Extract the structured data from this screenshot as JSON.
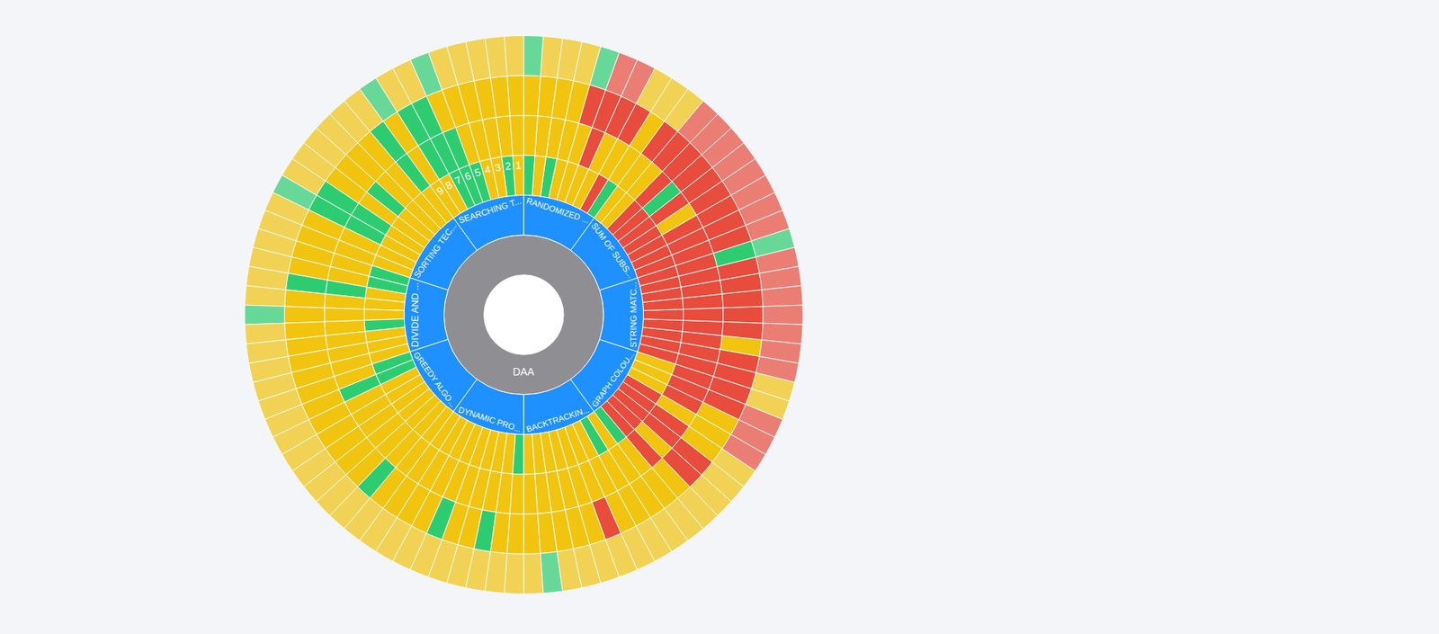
{
  "chart_data": {
    "type": "sunburst",
    "root": "DAA",
    "color": "#8e8e93",
    "children": [
      {
        "label": "SEARCHING T...",
        "color": "#1e90ff",
        "children": [
          {
            "label": "1",
            "colors": [
              "#f1c40f",
              "#f1c40f",
              "#f1c40f",
              "#f1c40f"
            ]
          },
          {
            "label": "2",
            "colors": [
              "#2ecc71",
              "#f1c40f",
              "#f1c40f",
              "#f1c40f"
            ]
          },
          {
            "label": "3",
            "colors": [
              "#f1c40f",
              "#f1c40f",
              "#f1c40f",
              "#f1c40f"
            ]
          },
          {
            "label": "4",
            "colors": [
              "#f1c40f",
              "#f1c40f",
              "#f1c40f",
              "#f1c40f"
            ]
          },
          {
            "label": "5",
            "colors": [
              "#2ecc71",
              "#f1c40f",
              "#f1c40f",
              "#f1c40f"
            ]
          },
          {
            "label": "6",
            "colors": [
              "#2ecc71",
              "#2ecc71",
              "#f1c40f",
              "#2ecc71"
            ]
          },
          {
            "label": "7",
            "colors": [
              "#2ecc71",
              "#2ecc71",
              "#2ecc71",
              "#f1c40f"
            ]
          },
          {
            "label": "8",
            "colors": [
              "#f1c40f",
              "#2ecc71",
              "#2ecc71",
              "#f1c40f"
            ]
          },
          {
            "label": "9",
            "colors": [
              "#f1c40f",
              "#f1c40f",
              "#f1c40f",
              "#2ecc71"
            ]
          }
        ]
      },
      {
        "label": "SORTING TEC...",
        "color": "#1e90ff",
        "children": [
          {
            "label": null,
            "colors": [
              "#f1c40f",
              "#2ecc71",
              "#2ecc71",
              "#f1c40f"
            ]
          },
          {
            "label": null,
            "colors": [
              "#f1c40f",
              "#f1c40f",
              "#f1c40f",
              "#f1c40f"
            ]
          },
          {
            "label": null,
            "colors": [
              "#f1c40f",
              "#f1c40f",
              "#f1c40f",
              "#f1c40f"
            ]
          },
          {
            "label": null,
            "colors": [
              "#f1c40f",
              "#2ecc71",
              "#f1c40f",
              "#f1c40f"
            ]
          },
          {
            "label": null,
            "colors": [
              "#f1c40f",
              "#f1c40f",
              "#f1c40f",
              "#f1c40f"
            ]
          },
          {
            "label": null,
            "colors": [
              "#f1c40f",
              "#2ecc71",
              "#2ecc71",
              "#f1c40f"
            ]
          },
          {
            "label": null,
            "colors": [
              "#f1c40f",
              "#2ecc71",
              "#2ecc71",
              "#2ecc71"
            ]
          },
          {
            "label": null,
            "colors": [
              "#f1c40f",
              "#f1c40f",
              "#f1c40f",
              "#f1c40f"
            ]
          },
          {
            "label": null,
            "colors": [
              "#f1c40f",
              "#f1c40f",
              "#f1c40f",
              "#f1c40f"
            ]
          }
        ]
      },
      {
        "label": "DIVIDE AND ...",
        "color": "#1e90ff",
        "children": [
          {
            "label": null,
            "colors": [
              "#2ecc71",
              "#f1c40f",
              "#f1c40f",
              "#f1c40f"
            ]
          },
          {
            "label": null,
            "colors": [
              "#2ecc71",
              "#f1c40f",
              "#f1c40f",
              "#f1c40f"
            ]
          },
          {
            "label": null,
            "colors": [
              "#f1c40f",
              "#2ecc71",
              "#2ecc71",
              "#f1c40f"
            ]
          },
          {
            "label": null,
            "colors": [
              "#f1c40f",
              "#f1c40f",
              "#f1c40f",
              "#f1c40f"
            ]
          },
          {
            "label": null,
            "colors": [
              "#f1c40f",
              "#f1c40f",
              "#f1c40f",
              "#2ecc71"
            ]
          },
          {
            "label": null,
            "colors": [
              "#2ecc71",
              "#f1c40f",
              "#f1c40f",
              "#f1c40f"
            ]
          },
          {
            "label": null,
            "colors": [
              "#f1c40f",
              "#f1c40f",
              "#f1c40f",
              "#f1c40f"
            ]
          },
          {
            "label": null,
            "colors": [
              "#f1c40f",
              "#f1c40f",
              "#f1c40f",
              "#f1c40f"
            ]
          },
          {
            "label": null,
            "colors": [
              "#f1c40f",
              "#f1c40f",
              "#f1c40f",
              "#f1c40f"
            ]
          }
        ]
      },
      {
        "label": "GREEDY ALGO...",
        "color": "#1e90ff",
        "children": [
          {
            "label": null,
            "colors": [
              "#2ecc71",
              "#f1c40f",
              "#f1c40f",
              "#f1c40f"
            ]
          },
          {
            "label": null,
            "colors": [
              "#2ecc71",
              "#2ecc71",
              "#f1c40f",
              "#f1c40f"
            ]
          },
          {
            "label": null,
            "colors": [
              "#f1c40f",
              "#f1c40f",
              "#f1c40f",
              "#f1c40f"
            ]
          },
          {
            "label": null,
            "colors": [
              "#f1c40f",
              "#f1c40f",
              "#f1c40f",
              "#f1c40f"
            ]
          },
          {
            "label": null,
            "colors": [
              "#f1c40f",
              "#f1c40f",
              "#f1c40f",
              "#f1c40f"
            ]
          },
          {
            "label": null,
            "colors": [
              "#f1c40f",
              "#f1c40f",
              "#f1c40f",
              "#f1c40f"
            ]
          },
          {
            "label": null,
            "colors": [
              "#f1c40f",
              "#f1c40f",
              "#f1c40f",
              "#f1c40f"
            ]
          },
          {
            "label": null,
            "colors": [
              "#f1c40f",
              "#f1c40f",
              "#2ecc71",
              "#f1c40f"
            ]
          },
          {
            "label": null,
            "colors": [
              "#f1c40f",
              "#f1c40f",
              "#f1c40f",
              "#f1c40f"
            ]
          }
        ]
      },
      {
        "label": "DYNAMIC PRO...",
        "color": "#1e90ff",
        "children": [
          {
            "label": null,
            "colors": [
              "#f1c40f",
              "#f1c40f",
              "#f1c40f",
              "#f1c40f"
            ]
          },
          {
            "label": null,
            "colors": [
              "#f1c40f",
              "#f1c40f",
              "#f1c40f",
              "#f1c40f"
            ]
          },
          {
            "label": null,
            "colors": [
              "#f1c40f",
              "#f1c40f",
              "#f1c40f",
              "#f1c40f"
            ]
          },
          {
            "label": null,
            "colors": [
              "#f1c40f",
              "#f1c40f",
              "#2ecc71",
              "#f1c40f"
            ]
          },
          {
            "label": null,
            "colors": [
              "#f1c40f",
              "#f1c40f",
              "#f1c40f",
              "#f1c40f"
            ]
          },
          {
            "label": null,
            "colors": [
              "#f1c40f",
              "#f1c40f",
              "#f1c40f",
              "#f1c40f"
            ]
          },
          {
            "label": null,
            "colors": [
              "#f1c40f",
              "#f1c40f",
              "#2ecc71",
              "#f1c40f"
            ]
          },
          {
            "label": null,
            "colors": [
              "#f1c40f",
              "#f1c40f",
              "#f1c40f",
              "#f1c40f"
            ]
          },
          {
            "label": null,
            "colors": [
              "#2ecc71",
              "#f1c40f",
              "#f1c40f",
              "#f1c40f"
            ]
          }
        ]
      },
      {
        "label": "BACKTRACKIN...",
        "color": "#1e90ff",
        "children": [
          {
            "label": null,
            "colors": [
              "#f1c40f",
              "#f1c40f",
              "#f1c40f",
              "#f1c40f"
            ]
          },
          {
            "label": null,
            "colors": [
              "#f1c40f",
              "#f1c40f",
              "#f1c40f",
              "#2ecc71"
            ]
          },
          {
            "label": null,
            "colors": [
              "#f1c40f",
              "#f1c40f",
              "#f1c40f",
              "#f1c40f"
            ]
          },
          {
            "label": null,
            "colors": [
              "#f1c40f",
              "#f1c40f",
              "#f1c40f",
              "#f1c40f"
            ]
          },
          {
            "label": null,
            "colors": [
              "#f1c40f",
              "#f1c40f",
              "#f1c40f",
              "#f1c40f"
            ]
          },
          {
            "label": null,
            "colors": [
              "#f1c40f",
              "#f1c40f",
              "#e74c3c",
              "#f1c40f"
            ]
          },
          {
            "label": null,
            "colors": [
              "#f1c40f",
              "#f1c40f",
              "#f1c40f",
              "#f1c40f"
            ]
          },
          {
            "label": null,
            "colors": [
              "#2ecc71",
              "#f1c40f",
              "#f1c40f",
              "#f1c40f"
            ]
          },
          {
            "label": null,
            "colors": [
              "#f1c40f",
              "#f1c40f",
              "#f1c40f",
              "#f1c40f"
            ]
          }
        ]
      },
      {
        "label": "GRAPH COLOU...",
        "color": "#1e90ff",
        "children": [
          {
            "label": null,
            "colors": [
              "#2ecc71",
              "#f1c40f",
              "#f1c40f",
              "#f1c40f"
            ]
          },
          {
            "label": null,
            "colors": [
              "#e74c3c",
              "#e74c3c",
              "#f1c40f",
              "#f1c40f"
            ]
          },
          {
            "label": null,
            "colors": [
              "#e74c3c",
              "#f1c40f",
              "#e74c3c",
              "#f1c40f"
            ]
          },
          {
            "label": null,
            "colors": [
              "#e74c3c",
              "#e74c3c",
              "#e74c3c",
              "#f1c40f"
            ]
          },
          {
            "label": null,
            "colors": [
              "#e74c3c",
              "#e74c3c",
              "#f1c40f",
              "#f1c40f"
            ]
          },
          {
            "label": null,
            "colors": [
              "#e74c3c",
              "#f1c40f",
              "#f1c40f",
              "#e74c3c"
            ]
          },
          {
            "label": null,
            "colors": [
              "#f1c40f",
              "#e74c3c",
              "#f1c40f",
              "#e74c3c"
            ]
          },
          {
            "label": null,
            "colors": [
              "#f1c40f",
              "#e74c3c",
              "#e74c3c",
              "#e74c3c"
            ]
          },
          {
            "label": null,
            "colors": [
              "#f1c40f",
              "#e74c3c",
              "#e74c3c",
              "#f1c40f"
            ]
          }
        ]
      },
      {
        "label": "STRING MATC...",
        "color": "#1e90ff",
        "children": [
          {
            "label": null,
            "colors": [
              "#e74c3c",
              "#e74c3c",
              "#e74c3c",
              "#f1c40f"
            ]
          },
          {
            "label": null,
            "colors": [
              "#e74c3c",
              "#e74c3c",
              "#e74c3c",
              "#e74c3c"
            ]
          },
          {
            "label": null,
            "colors": [
              "#e74c3c",
              "#e74c3c",
              "#f1c40f",
              "#e74c3c"
            ]
          },
          {
            "label": null,
            "colors": [
              "#e74c3c",
              "#e74c3c",
              "#e74c3c",
              "#e74c3c"
            ]
          },
          {
            "label": null,
            "colors": [
              "#e74c3c",
              "#e74c3c",
              "#e74c3c",
              "#e74c3c"
            ]
          },
          {
            "label": null,
            "colors": [
              "#e74c3c",
              "#e74c3c",
              "#e74c3c",
              "#e74c3c"
            ]
          },
          {
            "label": null,
            "colors": [
              "#e74c3c",
              "#e74c3c",
              "#e74c3c",
              "#e74c3c"
            ]
          },
          {
            "label": null,
            "colors": [
              "#e74c3c",
              "#e74c3c",
              "#e74c3c",
              "#e74c3c"
            ]
          },
          {
            "label": null,
            "colors": [
              "#e74c3c",
              "#e74c3c",
              "#2ecc71",
              "#2ecc71"
            ]
          }
        ]
      },
      {
        "label": "SUM OF SUBS...",
        "color": "#1e90ff",
        "children": [
          {
            "label": null,
            "colors": [
              "#e74c3c",
              "#e74c3c",
              "#e74c3c",
              "#e74c3c"
            ]
          },
          {
            "label": null,
            "colors": [
              "#e74c3c",
              "#e74c3c",
              "#e74c3c",
              "#e74c3c"
            ]
          },
          {
            "label": null,
            "colors": [
              "#e74c3c",
              "#e74c3c",
              "#e74c3c",
              "#e74c3c"
            ]
          },
          {
            "label": null,
            "colors": [
              "#e74c3c",
              "#f1c40f",
              "#e74c3c",
              "#e74c3c"
            ]
          },
          {
            "label": null,
            "colors": [
              "#e74c3c",
              "#e74c3c",
              "#e74c3c",
              "#e74c3c"
            ]
          },
          {
            "label": null,
            "colors": [
              "#e74c3c",
              "#2ecc71",
              "#e74c3c",
              "#e74c3c"
            ]
          },
          {
            "label": null,
            "colors": [
              "#e74c3c",
              "#e74c3c",
              "#e74c3c",
              "#e74c3c"
            ]
          },
          {
            "label": null,
            "colors": [
              "#f1c40f",
              "#f1c40f",
              "#e74c3c",
              "#e74c3c"
            ]
          },
          {
            "label": null,
            "colors": [
              "#f1c40f",
              "#f1c40f",
              "#e74c3c",
              "#f1c40f"
            ]
          }
        ]
      },
      {
        "label": "RANDOMIZED ...",
        "color": "#1e90ff",
        "children": [
          {
            "label": null,
            "colors": [
              "#2ecc71",
              "#f1c40f",
              "#f1c40f",
              "#f1c40f"
            ]
          },
          {
            "label": null,
            "colors": [
              "#e74c3c",
              "#f1c40f",
              "#e74c3c",
              "#f1c40f"
            ]
          },
          {
            "label": null,
            "colors": [
              "#f1c40f",
              "#f1c40f",
              "#e74c3c",
              "#e74c3c"
            ]
          },
          {
            "label": null,
            "colors": [
              "#f1c40f",
              "#e74c3c",
              "#e74c3c",
              "#e74c3c"
            ]
          },
          {
            "label": null,
            "colors": [
              "#f1c40f",
              "#f1c40f",
              "#e74c3c",
              "#2ecc71"
            ]
          },
          {
            "label": null,
            "colors": [
              "#f1c40f",
              "#f1c40f",
              "#f1c40f",
              "#f1c40f"
            ]
          },
          {
            "label": null,
            "colors": [
              "#2ecc71",
              "#f1c40f",
              "#f1c40f",
              "#f1c40f"
            ]
          },
          {
            "label": null,
            "colors": [
              "#f1c40f",
              "#f1c40f",
              "#f1c40f",
              "#f1c40f"
            ]
          },
          {
            "label": null,
            "colors": [
              "#2ecc71",
              "#f1c40f",
              "#f1c40f",
              "#2ecc71"
            ]
          }
        ]
      }
    ]
  }
}
